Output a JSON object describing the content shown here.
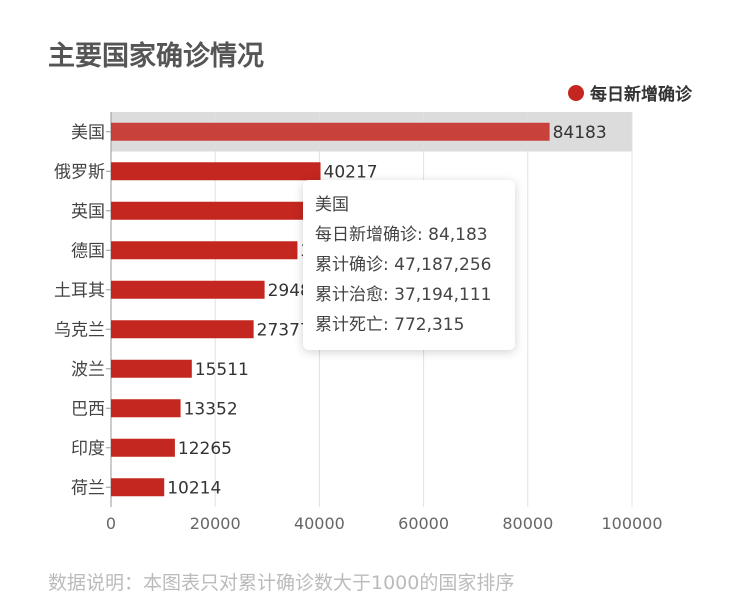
{
  "header": {
    "title": "主要国家确诊情况"
  },
  "legend": {
    "label": "每日新增确诊"
  },
  "colors": {
    "bar": "#c4271f",
    "highlight_bg": "#dcdcdc",
    "grid": "#e0e0e0",
    "axis": "#999999"
  },
  "tooltip": {
    "country": "美国",
    "lines": [
      "每日新增确诊: 84,183",
      "累计确诊: 47,187,256",
      "累计治愈: 37,194,111",
      "累计死亡: 772,315"
    ]
  },
  "footer": {
    "note": "数据说明：本图表只对累计确诊数大于1000的国家排序"
  },
  "chart_data": {
    "type": "bar",
    "orientation": "horizontal",
    "categories": [
      "美国",
      "俄罗斯",
      "英国",
      "德国",
      "土耳其",
      "乌克兰",
      "波兰",
      "巴西",
      "印度",
      "荷兰"
    ],
    "series": [
      {
        "name": "每日新增确诊",
        "values": [
          84183,
          40217,
          37681,
          35789,
          29480,
          27377,
          15511,
          13352,
          12265,
          10214
        ]
      }
    ],
    "xlim": [
      0,
      100000
    ],
    "xticks": [
      "0",
      "20000",
      "40000",
      "60000",
      "80000",
      "100000"
    ],
    "highlighted_category": "美国",
    "grid": true,
    "legend_position": "top-right"
  }
}
